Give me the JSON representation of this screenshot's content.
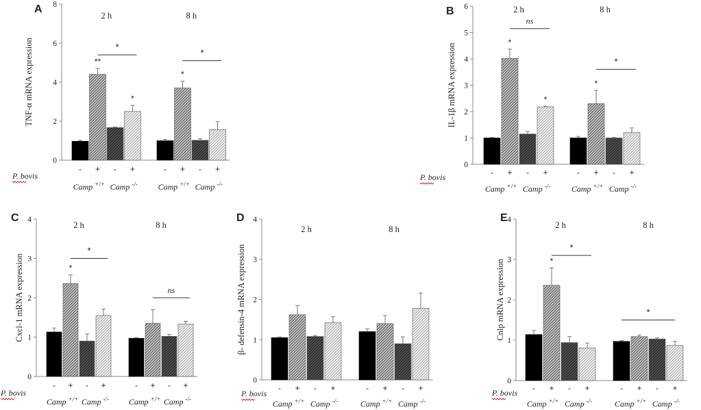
{
  "x_signs": [
    "-",
    "+",
    "-",
    "+",
    "-",
    "+",
    "-",
    "+"
  ],
  "x_row_label": "P. bovis",
  "group_labels": [
    {
      "name": "Camp",
      "sup": "+/+"
    },
    {
      "name": "Camp",
      "sup": "-/-"
    },
    {
      "name": "Camp",
      "sup": "+/+"
    },
    {
      "name": "Camp",
      "sup": "-/-"
    }
  ],
  "time_labels": [
    "2 h",
    "8 h"
  ],
  "colors": {
    "bar1": "#000000",
    "bar2": "#9a9a9a",
    "bar3": "#3c3c3c",
    "bar4": "#e6e6e6",
    "text": "#222222",
    "axis": "#888888",
    "underline": "#cc0000"
  },
  "chart_data": [
    {
      "panel": "A",
      "type": "bar",
      "ylabel": "TNF-α mRNA expression",
      "ylim": [
        0,
        8
      ],
      "yticks": [
        0,
        2,
        4,
        6,
        8
      ],
      "bar_order": [
        "Camp +/+ -",
        "Camp +/+ +",
        "Camp -/- -",
        "Camp -/- +"
      ],
      "timepoints": [
        {
          "label": "2 h",
          "values": [
            0.97,
            4.4,
            1.67,
            2.5
          ],
          "errors": [
            0.05,
            0.3,
            0.03,
            0.3
          ],
          "stars": [
            "",
            "**",
            "",
            "*"
          ]
        },
        {
          "label": "8 h",
          "values": [
            1.0,
            3.7,
            1.02,
            1.57
          ],
          "errors": [
            0.07,
            0.35,
            0.08,
            0.4
          ],
          "stars": [
            "",
            "*",
            "",
            ""
          ]
        }
      ],
      "comparisons": [
        {
          "time": 0,
          "from": 1,
          "to": 3,
          "y": 5.4,
          "text": "*"
        },
        {
          "time": 1,
          "from": 1,
          "to": 3,
          "y": 5.1,
          "text": "*"
        }
      ]
    },
    {
      "panel": "B",
      "type": "bar",
      "ylabel": "IL-1β mRNA expression",
      "ylim": [
        0,
        6
      ],
      "yticks": [
        0,
        1,
        2,
        3,
        4,
        5,
        6
      ],
      "bar_order": [
        "Camp +/+ -",
        "Camp +/+ +",
        "Camp -/- -",
        "Camp -/- +"
      ],
      "timepoints": [
        {
          "label": "2 h",
          "values": [
            1.0,
            4.02,
            1.15,
            2.18
          ],
          "errors": [
            0.02,
            0.35,
            0.1,
            0.02
          ],
          "stars": [
            "",
            "*",
            "",
            "*"
          ]
        },
        {
          "label": "8 h",
          "values": [
            1.0,
            2.3,
            1.0,
            1.2
          ],
          "errors": [
            0.06,
            0.5,
            0.02,
            0.18
          ],
          "stars": [
            "",
            "*",
            "",
            ""
          ]
        }
      ],
      "comparisons": [
        {
          "time": 0,
          "from": 1,
          "to": 3,
          "y": 5.15,
          "text": "ns"
        },
        {
          "time": 1,
          "from": 1,
          "to": 3,
          "y": 3.6,
          "text": "*"
        }
      ]
    },
    {
      "panel": "C",
      "type": "bar",
      "ylabel": "Cxcl-1 mRNA expression",
      "ylim": [
        0,
        4
      ],
      "yticks": [
        0,
        1,
        2,
        3,
        4
      ],
      "bar_order": [
        "Camp +/+ -",
        "Camp +/+ +",
        "Camp -/- -",
        "Camp -/- +"
      ],
      "timepoints": [
        {
          "label": "2 h",
          "values": [
            1.13,
            2.36,
            0.9,
            1.55
          ],
          "errors": [
            0.1,
            0.22,
            0.18,
            0.16
          ],
          "stars": [
            "",
            "*",
            "",
            ""
          ]
        },
        {
          "label": "8 h",
          "values": [
            0.97,
            1.35,
            1.02,
            1.33
          ],
          "errors": [
            0.02,
            0.35,
            0.05,
            0.07
          ],
          "stars": [
            "",
            "",
            "",
            ""
          ]
        }
      ],
      "comparisons": [
        {
          "time": 0,
          "from": 1,
          "to": 3,
          "y": 3.0,
          "text": "*"
        },
        {
          "time": 1,
          "from": 1,
          "to": 3,
          "y": 2.0,
          "text": "ns"
        }
      ]
    },
    {
      "panel": "D",
      "type": "bar",
      "ylabel": "β- defensin-4 mRNA expression",
      "ylim": [
        0,
        4
      ],
      "yticks": [
        0,
        1,
        2,
        3,
        4
      ],
      "bar_order": [
        "Camp +/+ -",
        "Camp +/+ +",
        "Camp -/- -",
        "Camp -/- +"
      ],
      "timepoints": [
        {
          "label": "2 h",
          "values": [
            1.05,
            1.62,
            1.08,
            1.42
          ],
          "errors": [
            0.02,
            0.23,
            0.02,
            0.15
          ],
          "stars": [
            "",
            "",
            "",
            ""
          ]
        },
        {
          "label": "8 h",
          "values": [
            1.2,
            1.4,
            0.9,
            1.78
          ],
          "errors": [
            0.07,
            0.2,
            0.17,
            0.38
          ],
          "stars": [
            "",
            "",
            "",
            ""
          ]
        }
      ],
      "comparisons": []
    },
    {
      "panel": "E",
      "type": "bar",
      "ylabel": "Cnlp mRNA expression",
      "ylim": [
        0,
        4
      ],
      "yticks": [
        0,
        1,
        2,
        3,
        4
      ],
      "bar_order": [
        "Camp +/+ -",
        "Camp +/+ +",
        "Camp -/- -",
        "Camp -/- +"
      ],
      "timepoints": [
        {
          "label": "2 h",
          "values": [
            1.14,
            2.36,
            0.94,
            0.81
          ],
          "errors": [
            0.1,
            0.43,
            0.15,
            0.12
          ],
          "stars": [
            "",
            "*",
            "",
            ""
          ]
        },
        {
          "label": "8 h",
          "values": [
            0.97,
            1.09,
            1.03,
            0.87
          ],
          "errors": [
            0.02,
            0.04,
            0.03,
            0.1
          ],
          "stars": [
            "",
            "",
            "",
            ""
          ]
        }
      ],
      "comparisons": [
        {
          "time": 0,
          "from": 1,
          "to": 3,
          "y": 3.1,
          "text": "*"
        },
        {
          "time": 1,
          "from": 0,
          "to": 3,
          "y": 1.5,
          "text": "*"
        }
      ]
    }
  ]
}
